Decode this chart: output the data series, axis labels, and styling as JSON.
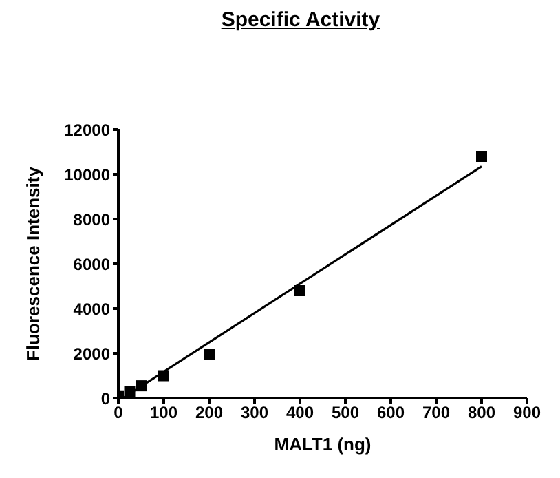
{
  "chart_data": {
    "type": "scatter",
    "title": "Specific Activity",
    "xlabel": "MALT1 (ng)",
    "ylabel": "Fluorescence Intensity",
    "xlim": [
      0,
      900
    ],
    "xticks": [
      0,
      100,
      200,
      300,
      400,
      500,
      600,
      700,
      800,
      900
    ],
    "ylim": [
      0,
      12000
    ],
    "yticks": [
      0,
      2000,
      4000,
      6000,
      8000,
      10000,
      12000
    ],
    "grid": false,
    "legend": false,
    "marker": "square",
    "series": [
      {
        "color": "#000000",
        "x": [
          0,
          25,
          50,
          100,
          200,
          400,
          800
        ],
        "values": [
          100,
          300,
          550,
          1000,
          1950,
          4800,
          10800
        ]
      },
      {
        "type": "line",
        "color": "#000000",
        "marker": "none",
        "line_style": "solid",
        "x": [
          10,
          800
        ],
        "values": [
          0,
          10350
        ]
      }
    ]
  }
}
